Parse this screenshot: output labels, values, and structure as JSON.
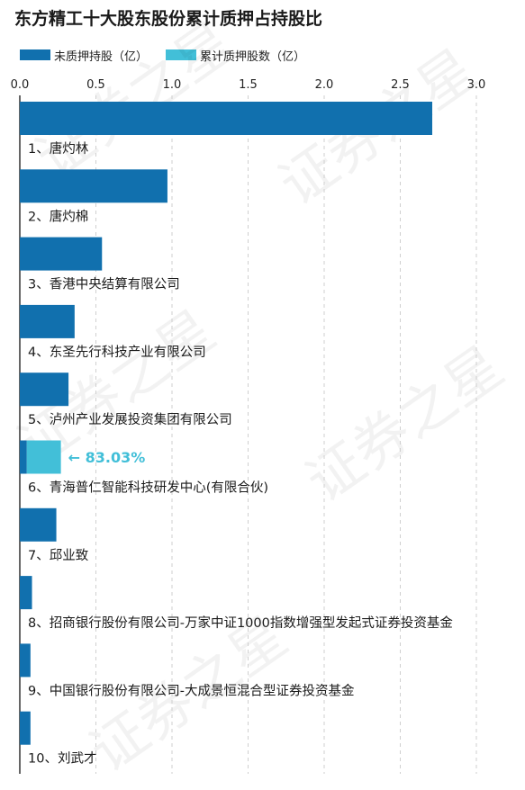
{
  "title": "东方精工十大股东股份累计质押占持股比",
  "legend": {
    "items": [
      {
        "label": "未质押持股（亿）",
        "color": "#1170AE"
      },
      {
        "label": "累计质押股数（亿）",
        "color": "#42BFD8"
      }
    ]
  },
  "watermark_text": "证券之星",
  "colors": {
    "unpledged": "#1170AE",
    "pledged": "#42BFD8",
    "annotation": "#42BFD8",
    "axis": "#333333",
    "grid": "#cfcfcf"
  },
  "chart_data": {
    "type": "bar",
    "orientation": "horizontal",
    "stacked": true,
    "xlim": [
      0,
      3.0
    ],
    "x_ticks": [
      "0.0",
      "0.5",
      "1.0",
      "1.5",
      "2.0",
      "2.5",
      "3.0"
    ],
    "grid": true,
    "categories": [
      "1、唐灼林",
      "2、唐灼棉",
      "3、香港中央结算有限公司",
      "4、东圣先行科技产业有限公司",
      "5、泸州产业发展投资集团有限公司",
      "6、青海普仁智能科技研发中心(有限合伙)",
      "7、邱业致",
      "8、招商银行股份有限公司-万家中证1000指数增强型发起式证券投资基金",
      "9、中国银行股份有限公司-大成景恒混合型证券投资基金",
      "10、刘武才"
    ],
    "series": [
      {
        "name": "未质押持股（亿）",
        "values": [
          2.71,
          0.97,
          0.54,
          0.36,
          0.32,
          0.046,
          0.24,
          0.08,
          0.07,
          0.07
        ]
      },
      {
        "name": "累计质押股数（亿）",
        "values": [
          0,
          0,
          0,
          0,
          0,
          0.224,
          0,
          0,
          0,
          0
        ]
      }
    ],
    "annotations": [
      {
        "category_index": 5,
        "text": "83.03%"
      }
    ]
  }
}
